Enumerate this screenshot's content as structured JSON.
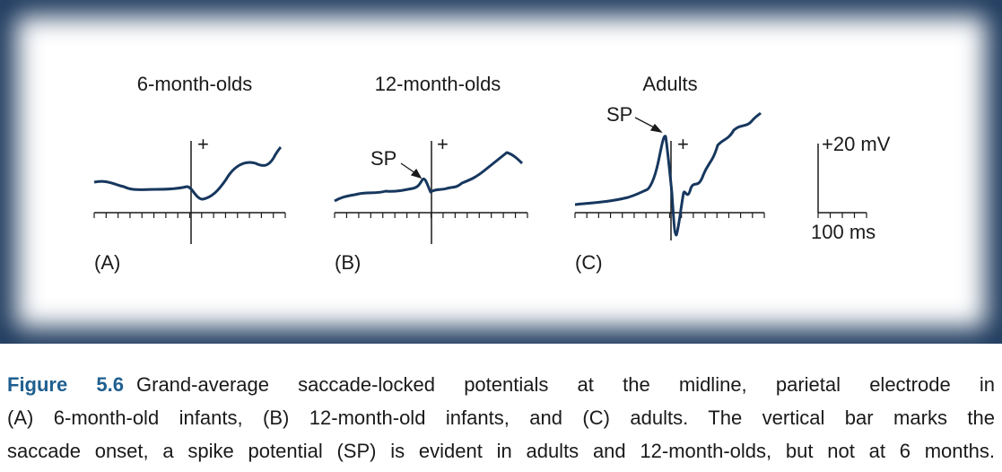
{
  "figure": {
    "panels": [
      {
        "title": "6-month-olds",
        "onset_mark": "+",
        "letter": "(A)"
      },
      {
        "title": "12-month-olds",
        "onset_mark": "+",
        "annotation": "SP",
        "letter": "(B)"
      },
      {
        "title": "Adults",
        "onset_mark": "+",
        "annotation": "SP",
        "letter": "(C)"
      }
    ],
    "scale": {
      "amplitude": "+20 mV",
      "time": "100 ms"
    }
  },
  "caption": {
    "label": "Figure 5.6",
    "lines": [
      "Grand-average saccade-locked potentials at the midline, parietal electrode in",
      "(A) 6-month-old infants, (B) 12-month-old infants, and (C) adults. The vertical bar marks the",
      "saccade onset, a spike potential (SP) is evident in adults and 12-month-olds, but not at 6 months."
    ]
  }
}
